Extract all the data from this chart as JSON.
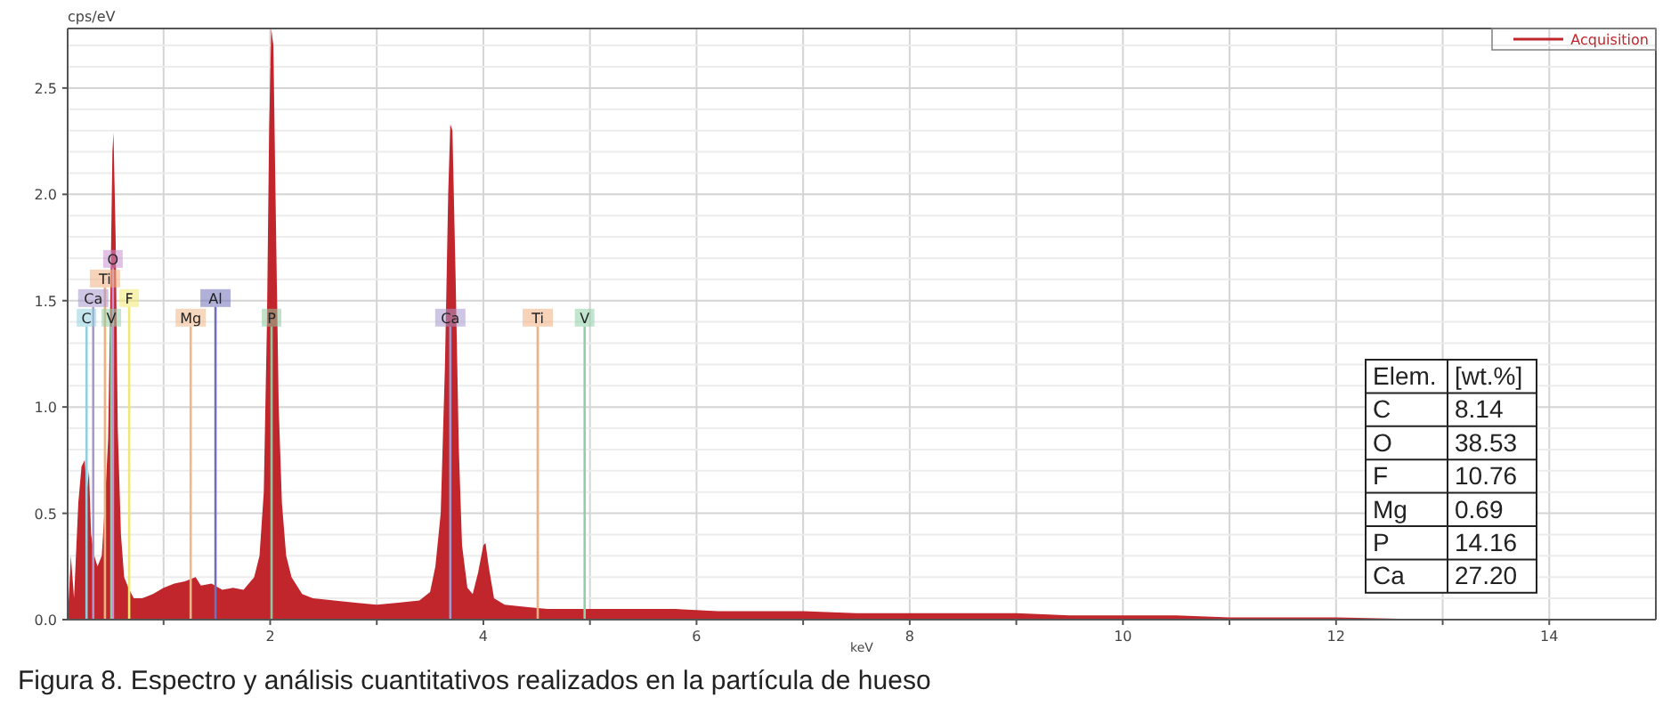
{
  "chart_data": [
    {
      "type": "area",
      "xlabel": "keV",
      "ylabel": "cps/eV",
      "xlim": [
        0.1,
        15
      ],
      "ylim": [
        0,
        2.78
      ],
      "xticks": [
        {
          "value": 1,
          "label": null
        },
        2,
        {
          "value": 3,
          "label": null
        },
        4,
        {
          "value": 5,
          "label": null
        },
        6,
        {
          "value": 7,
          "label": null
        },
        8,
        {
          "value": 9,
          "label": null
        },
        10,
        {
          "value": 11,
          "label": null
        },
        12,
        {
          "value": 13,
          "label": null
        },
        14
      ],
      "yticks": [
        {
          "value": 0,
          "label": "0.0"
        },
        {
          "value": 0.5,
          "label": "0.5"
        },
        {
          "value": 1,
          "label": "1.0"
        },
        {
          "value": 1.5,
          "label": "1.5"
        },
        {
          "value": 2,
          "label": "2.0"
        },
        {
          "value": 2.5,
          "label": "2.5"
        }
      ],
      "grid": true,
      "legend": "top right",
      "series": [
        {
          "name": "Acquisition",
          "color": "#c0262c",
          "x": [
            0.1,
            0.13,
            0.16,
            0.2,
            0.23,
            0.26,
            0.28,
            0.3,
            0.32,
            0.35,
            0.38,
            0.42,
            0.45,
            0.48,
            0.5,
            0.52,
            0.53,
            0.55,
            0.57,
            0.6,
            0.63,
            0.67,
            0.72,
            0.8,
            0.9,
            1.0,
            1.1,
            1.2,
            1.3,
            1.35,
            1.45,
            1.55,
            1.65,
            1.75,
            1.85,
            1.9,
            1.94,
            1.97,
            1.99,
            2.01,
            2.03,
            2.05,
            2.08,
            2.11,
            2.15,
            2.2,
            2.3,
            2.4,
            2.6,
            2.8,
            3.0,
            3.2,
            3.4,
            3.5,
            3.55,
            3.6,
            3.64,
            3.67,
            3.69,
            3.71,
            3.74,
            3.77,
            3.8,
            3.85,
            3.9,
            3.95,
            4.0,
            4.02,
            4.05,
            4.1,
            4.2,
            4.4,
            4.6,
            4.8,
            5.0,
            5.4,
            5.8,
            6.2,
            6.6,
            7.0,
            7.5,
            8.0,
            8.5,
            9.0,
            9.5,
            10,
            10.5,
            11,
            11.5,
            12,
            13,
            15
          ],
          "values": [
            0,
            0.3,
            0.1,
            0.55,
            0.72,
            0.75,
            0.6,
            0.7,
            0.4,
            0.3,
            0.25,
            0.3,
            0.55,
            0.85,
            1.5,
            2.2,
            2.29,
            1.8,
            0.9,
            0.4,
            0.2,
            0.15,
            0.1,
            0.1,
            0.12,
            0.15,
            0.17,
            0.18,
            0.2,
            0.16,
            0.17,
            0.14,
            0.15,
            0.14,
            0.2,
            0.3,
            0.6,
            1.4,
            2.3,
            2.78,
            2.7,
            2,
            1,
            0.55,
            0.3,
            0.2,
            0.12,
            0.1,
            0.09,
            0.08,
            0.07,
            0.08,
            0.09,
            0.13,
            0.25,
            0.5,
            1.2,
            2,
            2.33,
            2.3,
            1.6,
            0.8,
            0.35,
            0.15,
            0.12,
            0.22,
            0.35,
            0.36,
            0.25,
            0.1,
            0.07,
            0.06,
            0.05,
            0.05,
            0.05,
            0.05,
            0.05,
            0.04,
            0.04,
            0.04,
            0.03,
            0.03,
            0.03,
            0.03,
            0.02,
            0.02,
            0.02,
            0.01,
            0.01,
            0.01,
            0,
            0
          ]
        }
      ],
      "ref_lines": [
        {
          "axis": "x",
          "value": 0.277,
          "label": "C",
          "color": "#8fd0e0"
        },
        {
          "axis": "x",
          "value": 0.34,
          "label": "Ca",
          "color": "#a898d0"
        },
        {
          "axis": "x",
          "value": 0.45,
          "label": "Ti",
          "color": "#f0b080"
        },
        {
          "axis": "x",
          "value": 0.51,
          "label": "V",
          "color": "#90d0a8"
        },
        {
          "axis": "x",
          "value": 0.525,
          "label": "O",
          "color": "#c890d0"
        },
        {
          "axis": "x",
          "value": 0.677,
          "label": "F",
          "color": "#f0e870"
        },
        {
          "axis": "x",
          "value": 1.254,
          "label": "Mg",
          "color": "#f0b888"
        },
        {
          "axis": "x",
          "value": 1.487,
          "label": "Al",
          "color": "#7070b8"
        },
        {
          "axis": "x",
          "value": 2.013,
          "label": "P",
          "color": "#90c8a0"
        },
        {
          "axis": "x",
          "value": 3.69,
          "label": "Ca",
          "color": "#a898d0"
        },
        {
          "axis": "x",
          "value": 4.51,
          "label": "Ti",
          "color": "#f0b080"
        },
        {
          "axis": "x",
          "value": 4.95,
          "label": "V",
          "color": "#90d0a8"
        }
      ],
      "annotations": [
        "Figura 8. Espectro y análisis cuantitativos realizados en la partícula de hueso"
      ]
    },
    {
      "type": "other",
      "xlabel": "Elem.",
      "ylabel": "[wt.%]",
      "categories": [
        "C",
        "O",
        "F",
        "Mg",
        "P",
        "Ca"
      ],
      "value_labels": [
        "8.14",
        "38.53",
        "10.76",
        "0.69",
        "14.16",
        "27.20"
      ]
    }
  ]
}
